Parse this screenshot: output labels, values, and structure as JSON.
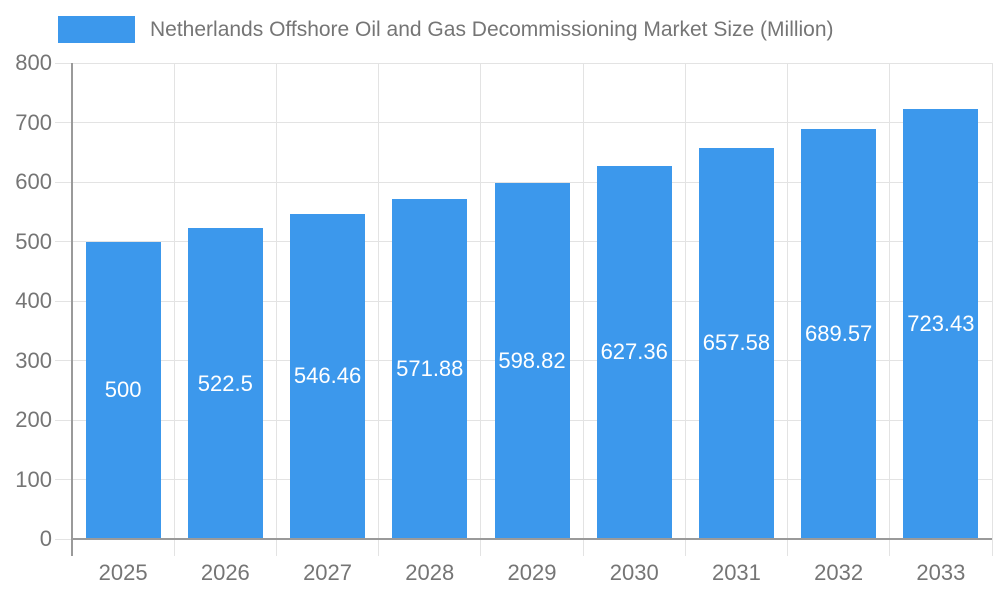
{
  "legend": {
    "label": "Netherlands Offshore Oil and Gas Decommissioning Market Size (Million)"
  },
  "chart_data": {
    "type": "bar",
    "title": "Netherlands Offshore Oil and Gas Decommissioning Market Size (Million)",
    "series_name": "Netherlands Offshore Oil and Gas Decommissioning Market Size (Million)",
    "categories": [
      "2025",
      "2026",
      "2027",
      "2028",
      "2029",
      "2030",
      "2031",
      "2032",
      "2033"
    ],
    "values": [
      500,
      522.5,
      546.46,
      571.88,
      598.82,
      627.36,
      657.58,
      689.57,
      723.43
    ],
    "value_labels": [
      "500",
      "522.5",
      "546.46",
      "571.88",
      "598.82",
      "627.36",
      "657.58",
      "689.57",
      "723.43"
    ],
    "xlabel": "",
    "ylabel": "",
    "ylim": [
      0,
      800
    ],
    "yticks": [
      0,
      100,
      200,
      300,
      400,
      500,
      600,
      700,
      800
    ],
    "grid": true,
    "legend_position": "top-left",
    "bar_label_position": "middle-inside",
    "colors": {
      "bar": "#3C98EC",
      "gridline": "#E3E3E3",
      "axis_line": "#9A9A9A",
      "tick_text": "#757575",
      "bar_label_text": "#FFFFFF",
      "background": "#FFFFFF"
    }
  }
}
